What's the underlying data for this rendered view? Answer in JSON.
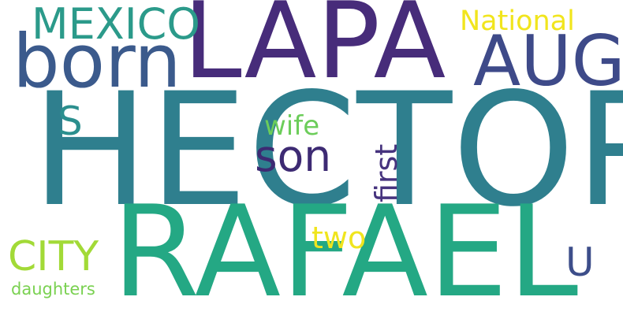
{
  "words": {
    "hector": {
      "text": "HECTOR",
      "color": "#2f7f8e"
    },
    "rafael": {
      "text": "RAFAEL",
      "color": "#24a884"
    },
    "lapa": {
      "text": "LAPA",
      "color": "#472c7a"
    },
    "born": {
      "text": "born",
      "color": "#3b5a8c"
    },
    "aug": {
      "text": "AUG",
      "color": "#3e4a89"
    },
    "mexico": {
      "text": "MEXICO",
      "color": "#2b9a8a"
    },
    "national": {
      "text": "National",
      "color": "#f1e51d"
    },
    "son": {
      "text": "son",
      "color": "#3d2a73"
    },
    "s": {
      "text": "S",
      "color": "#2b8f8e"
    },
    "wife": {
      "text": "wife",
      "color": "#6ccd5a"
    },
    "first": {
      "text": "first",
      "color": "#46337e"
    },
    "city": {
      "text": "CITY",
      "color": "#a2da37"
    },
    "two": {
      "text": "two",
      "color": "#f0e51e"
    },
    "u": {
      "text": "U",
      "color": "#3d4e8a"
    },
    "daughters": {
      "text": "daughters",
      "color": "#7ad151"
    }
  }
}
